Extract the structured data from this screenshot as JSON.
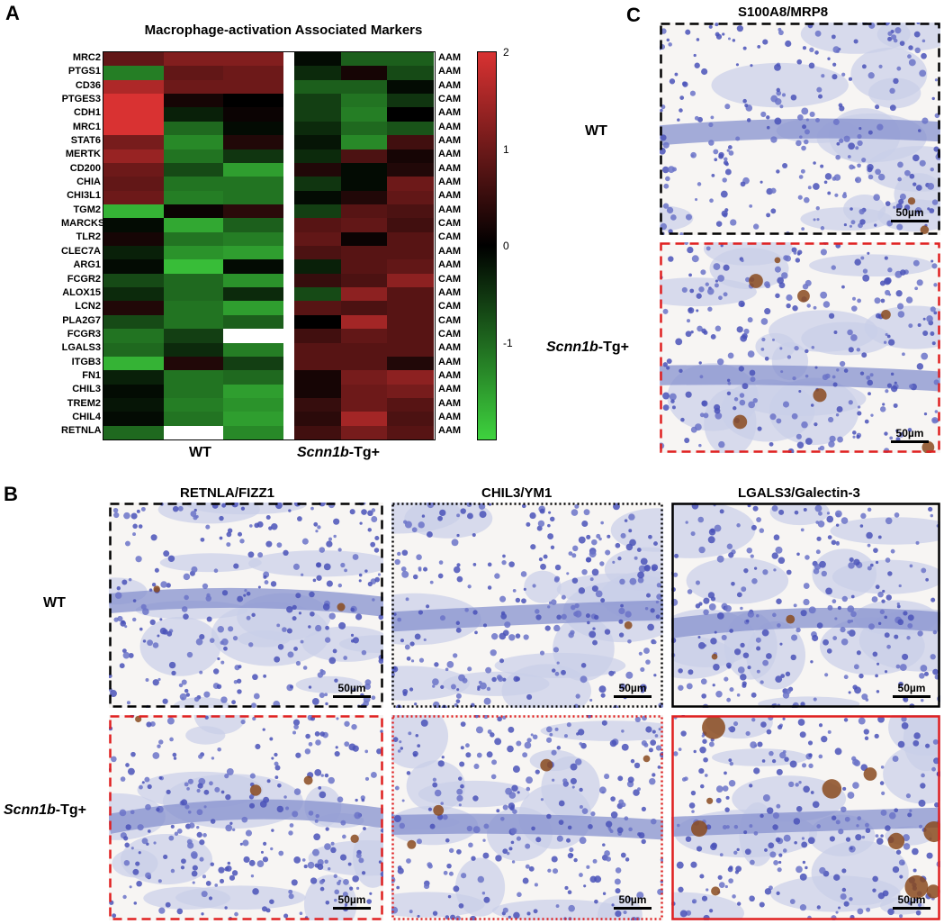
{
  "panels": {
    "A": "A",
    "B": "B",
    "C": "C"
  },
  "heatmap": {
    "title": "Macrophage-activation Associated Markers",
    "genes": [
      "MRC2",
      "PTGS1",
      "CD36",
      "PTGES3",
      "CDH1",
      "MRC1",
      "STAT6",
      "MERTK",
      "CD200",
      "CHIA",
      "CHI3L1",
      "TGM2",
      "MARCKS",
      "TLR2",
      "CLEC7A",
      "ARG1",
      "FCGR2",
      "ALOX15",
      "LCN2",
      "PLA2G7",
      "FCGR3",
      "LGALS3",
      "ITGB3",
      "FN1",
      "CHIL3",
      "TREM2",
      "CHIL4",
      "RETNLA"
    ],
    "classes": [
      "AAM",
      "AAM",
      "AAM",
      "CAM",
      "AAM",
      "AAM",
      "AAM",
      "AAM",
      "AAM",
      "AAM",
      "AAM",
      "AAM",
      "CAM",
      "CAM",
      "AAM",
      "AAM",
      "CAM",
      "AAM",
      "CAM",
      "CAM",
      "CAM",
      "AAM",
      "AAM",
      "AAM",
      "AAM",
      "AAM",
      "AAM",
      "AAM"
    ],
    "group_wt": "WT",
    "group_tg_italic": "Scnn1b",
    "group_tg_suffix": "-Tg+",
    "colorbar_ticks": [
      "2",
      "1",
      "0",
      "-1"
    ],
    "colors": {
      "high": "#d93232",
      "mid": "#000000",
      "low": "#3ed23e",
      "missing": "#ffffff"
    },
    "values": [
      [
        0.9,
        1.2,
        1.2,
        -0.1,
        -0.9,
        -0.9
      ],
      [
        -1.2,
        0.9,
        1.0,
        -0.4,
        0.2,
        -0.7
      ],
      [
        1.6,
        1.0,
        1.0,
        -0.9,
        -0.9,
        -0.1
      ],
      [
        2.0,
        0.2,
        0.0,
        -0.6,
        -1.1,
        -0.5
      ],
      [
        2.0,
        -0.3,
        0.1,
        -0.6,
        -1.2,
        0.0
      ],
      [
        2.0,
        -1.0,
        -0.1,
        -0.4,
        -1.0,
        -0.8
      ],
      [
        1.1,
        -1.3,
        0.3,
        -0.2,
        -1.3,
        0.6
      ],
      [
        1.4,
        -1.1,
        -0.5,
        -0.4,
        0.7,
        0.2
      ],
      [
        1.0,
        -0.7,
        -1.5,
        0.3,
        -0.1,
        0.3
      ],
      [
        0.9,
        -1.1,
        -1.1,
        -0.5,
        -0.1,
        1.0
      ],
      [
        1.0,
        -1.2,
        -1.1,
        -0.1,
        0.3,
        0.9
      ],
      [
        -1.7,
        0.1,
        0.4,
        -0.6,
        0.8,
        0.7
      ],
      [
        -0.1,
        -1.6,
        -0.9,
        0.8,
        0.9,
        0.6
      ],
      [
        0.2,
        -1.1,
        -1.2,
        0.9,
        0.1,
        0.8
      ],
      [
        -0.3,
        -1.4,
        -1.5,
        0.7,
        0.8,
        0.8
      ],
      [
        -0.1,
        -1.8,
        -0.1,
        -0.3,
        0.8,
        0.9
      ],
      [
        -0.7,
        -1.0,
        -1.4,
        0.5,
        0.7,
        1.3
      ],
      [
        -0.4,
        -1.0,
        -0.4,
        -0.7,
        1.3,
        0.8
      ],
      [
        0.3,
        -1.1,
        -1.5,
        0.8,
        0.7,
        0.8
      ],
      [
        -0.7,
        -1.1,
        -0.9,
        0.0,
        1.5,
        0.8
      ],
      [
        -1.1,
        -0.6,
        null,
        0.6,
        0.9,
        0.8
      ],
      [
        -1.0,
        -0.4,
        -1.2,
        0.8,
        0.8,
        0.8
      ],
      [
        -1.7,
        0.3,
        -0.6,
        0.8,
        0.8,
        0.3
      ],
      [
        -0.3,
        -1.1,
        -1.0,
        0.2,
        1.1,
        1.3
      ],
      [
        -0.1,
        -1.1,
        -1.5,
        0.2,
        1.0,
        1.1
      ],
      [
        -0.2,
        -1.2,
        -1.4,
        0.5,
        1.0,
        0.8
      ],
      [
        -0.1,
        -1.1,
        -1.5,
        0.4,
        1.5,
        0.7
      ],
      [
        -1.0,
        null,
        -1.3,
        0.6,
        1.1,
        0.8
      ]
    ]
  },
  "panel_b": {
    "stains": [
      "RETNLA/FIZZ1",
      "CHIL3/YM1",
      "LGALS3/Galectin-3"
    ],
    "row_wt": "WT",
    "row_tg_italic": "Scnn1b",
    "row_tg_suffix": "-Tg+"
  },
  "panel_c": {
    "stain": "S100A8/MRP8",
    "row_wt": "WT",
    "row_tg_italic": "Scnn1b",
    "row_tg_suffix": "-Tg+"
  },
  "scalebar": {
    "label": "50µm"
  }
}
